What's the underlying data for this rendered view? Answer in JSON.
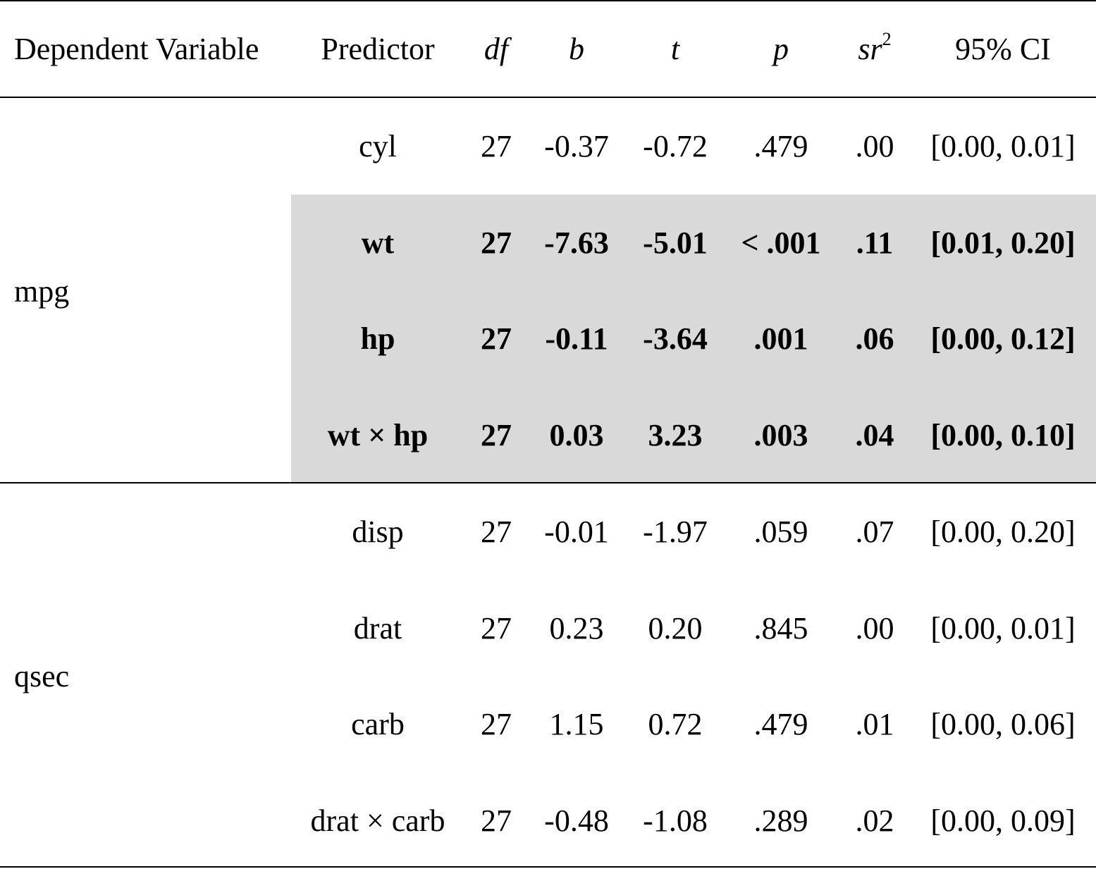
{
  "table": {
    "headers": {
      "dependent_variable": "Dependent Variable",
      "predictor": "Predictor",
      "df": "df",
      "b": "b",
      "t": "t",
      "p": "p",
      "sr": "sr",
      "sr_sup": "2",
      "ci": "95% CI"
    },
    "groups": [
      {
        "dependent_variable": "mpg",
        "rows": [
          {
            "predictor": "cyl",
            "df": "27",
            "b": "-0.37",
            "t": "-0.72",
            "p": ".479",
            "sr2": ".00",
            "ci": "[0.00, 0.01]",
            "bold": false
          },
          {
            "predictor": "wt",
            "df": "27",
            "b": "-7.63",
            "t": "-5.01",
            "p": "< .001",
            "sr2": ".11",
            "ci": "[0.01, 0.20]",
            "bold": true
          },
          {
            "predictor": "hp",
            "df": "27",
            "b": "-0.11",
            "t": "-3.64",
            "p": ".001",
            "sr2": ".06",
            "ci": "[0.00, 0.12]",
            "bold": true
          },
          {
            "predictor": "wt × hp",
            "df": "27",
            "b": "0.03",
            "t": "3.23",
            "p": ".003",
            "sr2": ".04",
            "ci": "[0.00, 0.10]",
            "bold": true
          }
        ]
      },
      {
        "dependent_variable": "qsec",
        "rows": [
          {
            "predictor": "disp",
            "df": "27",
            "b": "-0.01",
            "t": "-1.97",
            "p": ".059",
            "sr2": ".07",
            "ci": "[0.00, 0.20]",
            "bold": false
          },
          {
            "predictor": "drat",
            "df": "27",
            "b": "0.23",
            "t": "0.20",
            "p": ".845",
            "sr2": ".00",
            "ci": "[0.00, 0.01]",
            "bold": false
          },
          {
            "predictor": "carb",
            "df": "27",
            "b": "1.15",
            "t": "0.72",
            "p": ".479",
            "sr2": ".01",
            "ci": "[0.00, 0.06]",
            "bold": false
          },
          {
            "predictor": "drat × carb",
            "df": "27",
            "b": "-0.48",
            "t": "-1.08",
            "p": ".289",
            "sr2": ".02",
            "ci": "[0.00, 0.09]",
            "bold": false
          }
        ]
      }
    ],
    "colors": {
      "highlight_fill": "#d9d9d9",
      "rule": "#000000",
      "text": "#000000"
    }
  }
}
